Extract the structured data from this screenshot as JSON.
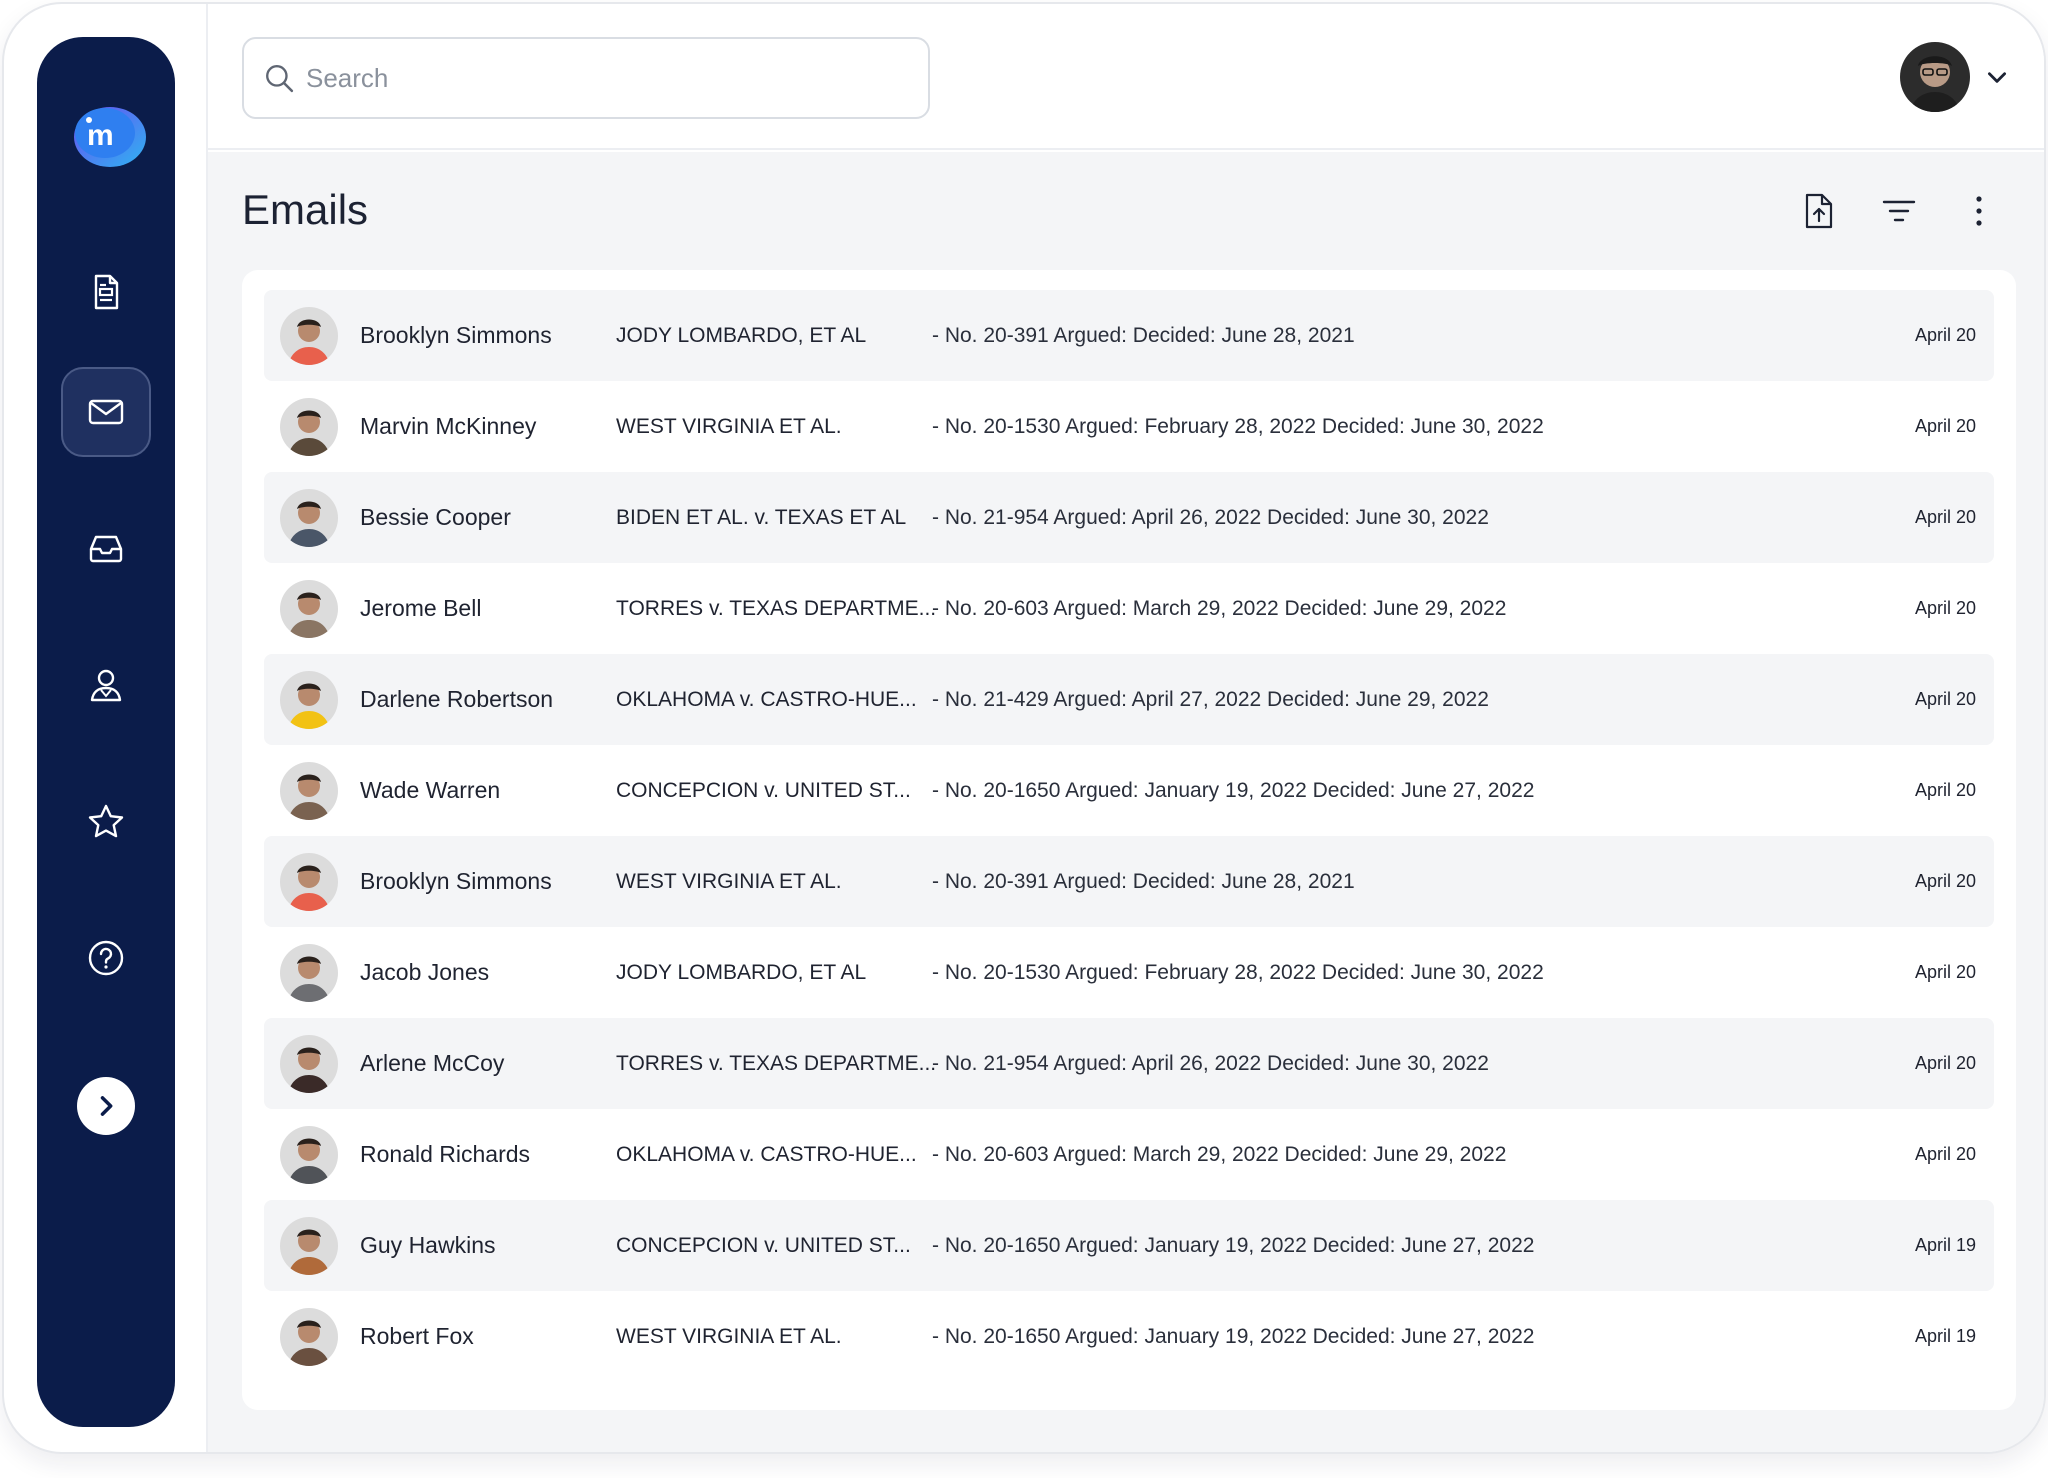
{
  "search": {
    "placeholder": "Search"
  },
  "page": {
    "title": "Emails"
  },
  "colors": {
    "sidebar": "#0b1c4a",
    "accent": "#3b6ee6"
  },
  "sidebar": {
    "items": [
      {
        "icon": "document-icon"
      },
      {
        "icon": "mail-icon",
        "active": true
      },
      {
        "icon": "inbox-icon"
      },
      {
        "icon": "user-icon"
      },
      {
        "icon": "star-icon"
      },
      {
        "icon": "help-icon"
      }
    ],
    "expand_icon": "chevron-right-icon"
  },
  "toolbar": {
    "icons": [
      "upload-file-icon",
      "filter-icon",
      "more-vertical-icon"
    ]
  },
  "emails": [
    {
      "name": "Brooklyn Simmons",
      "subject": "JODY LOMBARDO, ET AL",
      "preview": "- No. 20-391 Argued: Decided: June 28, 2021",
      "date": "April 20",
      "avatar_color": "#e8604c"
    },
    {
      "name": "Marvin McKinney",
      "subject": "WEST VIRGINIA ET AL.",
      "preview": "- No. 20-1530 Argued: February 28, 2022 Decided: June 30, 2022",
      "date": "April 20",
      "avatar_color": "#5a4a3a"
    },
    {
      "name": "Bessie Cooper",
      "subject": "BIDEN ET AL. v. TEXAS ET AL",
      "preview": "- No. 21-954 Argued: April 26, 2022 Decided: June 30, 2022",
      "date": "April 20",
      "avatar_color": "#4a5668"
    },
    {
      "name": "Jerome Bell",
      "subject": "TORRES v. TEXAS DEPARTME...",
      "preview": "- No. 20-603 Argued: March 29, 2022 Decided: June 29, 2022",
      "date": "April 20",
      "avatar_color": "#8a7563"
    },
    {
      "name": "Darlene Robertson",
      "subject": "OKLAHOMA v. CASTRO-HUE...",
      "preview": "- No. 21-429 Argued: April 27, 2022 Decided: June 29, 2022",
      "date": "April 20",
      "avatar_color": "#f2c214"
    },
    {
      "name": "Wade Warren",
      "subject": "CONCEPCION v. UNITED ST...",
      "preview": "- No. 20-1650 Argued: January 19, 2022 Decided: June 27, 2022",
      "date": "April 20",
      "avatar_color": "#7a6250"
    },
    {
      "name": "Brooklyn Simmons",
      "subject": "WEST VIRGINIA ET AL.",
      "preview": "- No. 20-391 Argued: Decided: June 28, 2021",
      "date": "April 20",
      "avatar_color": "#e8604c"
    },
    {
      "name": "Jacob Jones",
      "subject": "JODY LOMBARDO, ET AL",
      "preview": "- No. 20-1530 Argued: February 28, 2022 Decided: June 30, 2022",
      "date": "April 20",
      "avatar_color": "#6d6e72"
    },
    {
      "name": "Arlene McCoy",
      "subject": "TORRES v. TEXAS DEPARTME...",
      "preview": "- No. 21-954 Argued: April 26, 2022 Decided: June 30, 2022",
      "date": "April 20",
      "avatar_color": "#3a2a28"
    },
    {
      "name": "Ronald Richards",
      "subject": "OKLAHOMA v. CASTRO-HUE...",
      "preview": "- No. 20-603 Argued: March 29, 2022 Decided: June 29, 2022",
      "date": "April 20",
      "avatar_color": "#505358"
    },
    {
      "name": "Guy Hawkins",
      "subject": "CONCEPCION v. UNITED ST...",
      "preview": "- No. 20-1650 Argued: January 19, 2022 Decided: June 27, 2022",
      "date": "April 19",
      "avatar_color": "#b06a3a"
    },
    {
      "name": "Robert Fox",
      "subject": "WEST VIRGINIA ET AL.",
      "preview": "- No. 20-1650 Argued: January 19, 2022 Decided: June 27, 2022",
      "date": "April 19",
      "avatar_color": "#6a5040"
    }
  ]
}
